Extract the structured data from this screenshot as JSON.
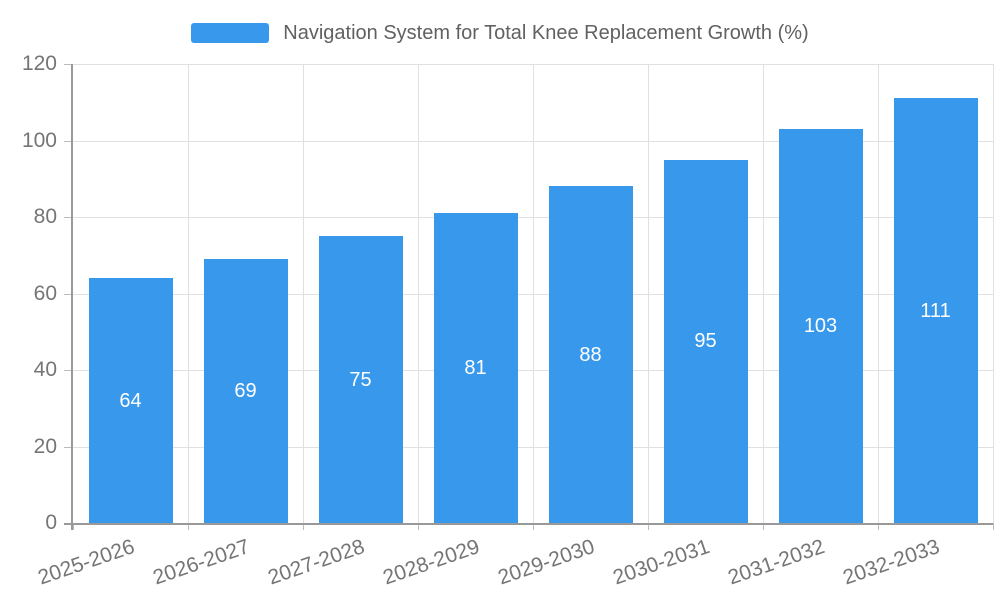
{
  "legend": {
    "label": "Navigation System for Total Knee Replacement Growth (%)"
  },
  "chart_data": {
    "type": "bar",
    "title": "",
    "xlabel": "",
    "ylabel": "",
    "categories": [
      "2025-2026",
      "2026-2027",
      "2027-2028",
      "2028-2029",
      "2029-2030",
      "2030-2031",
      "2031-2032",
      "2032-2033"
    ],
    "values": [
      64,
      69,
      75,
      81,
      88,
      95,
      103,
      111
    ],
    "series_name": "Navigation System for Total Knee Replacement Growth (%)",
    "ylim": [
      0,
      120
    ],
    "yticks": [
      0,
      20,
      40,
      60,
      80,
      100,
      120
    ],
    "grid": true,
    "legend_position": "top",
    "value_label_position": "inside-center",
    "x_label_rotation_deg": -19
  },
  "colors": {
    "bar": "#3899EC",
    "axis": "#999999",
    "grid": "#E0E0E0",
    "tick": "#BBBBBB",
    "tick_text": "#757575",
    "legend_text": "#616161",
    "value_text": "#FFFFFF",
    "background": "#FFFFFF"
  }
}
